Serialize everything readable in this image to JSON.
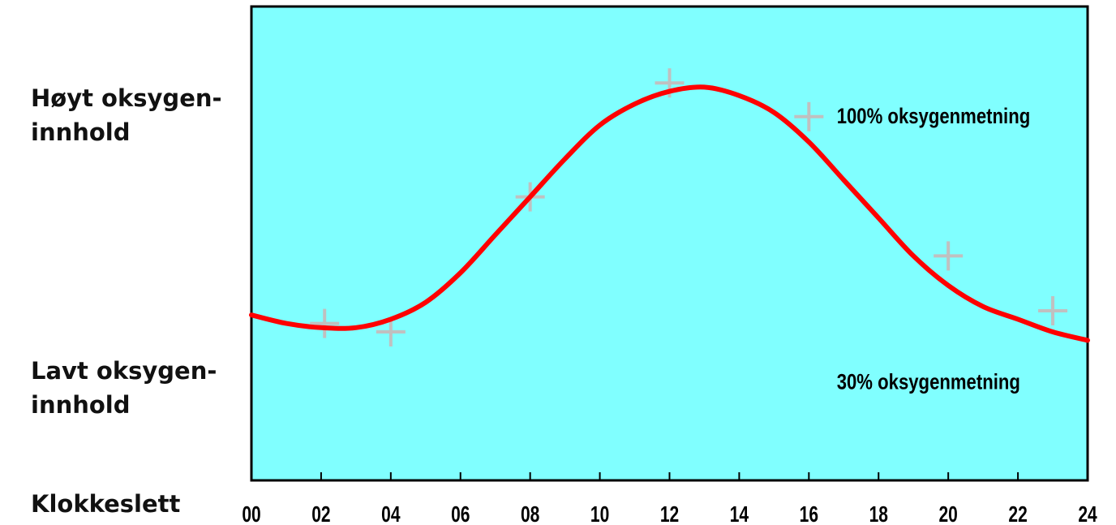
{
  "labels": {
    "high": [
      "Høyt oksygen-",
      "innhold"
    ],
    "low": [
      "Lavt oksygen-",
      "innhold"
    ],
    "xlabel": "Klokkeslett"
  },
  "chart_data": {
    "type": "line",
    "x_ticks": [
      "00",
      "02",
      "04",
      "06",
      "08",
      "10",
      "12",
      "14",
      "16",
      "18",
      "20",
      "22",
      "24"
    ],
    "xlim": [
      0,
      24
    ],
    "ylim": [
      0,
      100
    ],
    "series": [
      {
        "color": "#ff0000",
        "x": [
          0,
          1,
          2,
          3,
          4,
          5,
          6,
          7,
          8,
          9,
          10,
          11,
          12,
          13,
          14,
          15,
          16,
          17,
          18,
          19,
          20,
          21,
          22,
          23,
          24
        ],
        "y": [
          34,
          32,
          31,
          31,
          33,
          37,
          44,
          53,
          62,
          71,
          79,
          84,
          87,
          88,
          86,
          82,
          75,
          66,
          57,
          48,
          41,
          36,
          33,
          30,
          28
        ]
      }
    ],
    "markers": {
      "color": "#c0c0c0",
      "x": [
        2.1,
        4,
        8,
        12,
        16,
        20,
        23
      ],
      "y": [
        32,
        30,
        62,
        89,
        81,
        48,
        35
      ]
    },
    "annotations": [
      {
        "text": "100% oksygenmetning",
        "x": 16.8,
        "y": 81
      },
      {
        "text": "30% oksygenmetning",
        "x": 16.8,
        "y": 18
      }
    ],
    "plot_background": "#80ffff",
    "grid": false
  }
}
